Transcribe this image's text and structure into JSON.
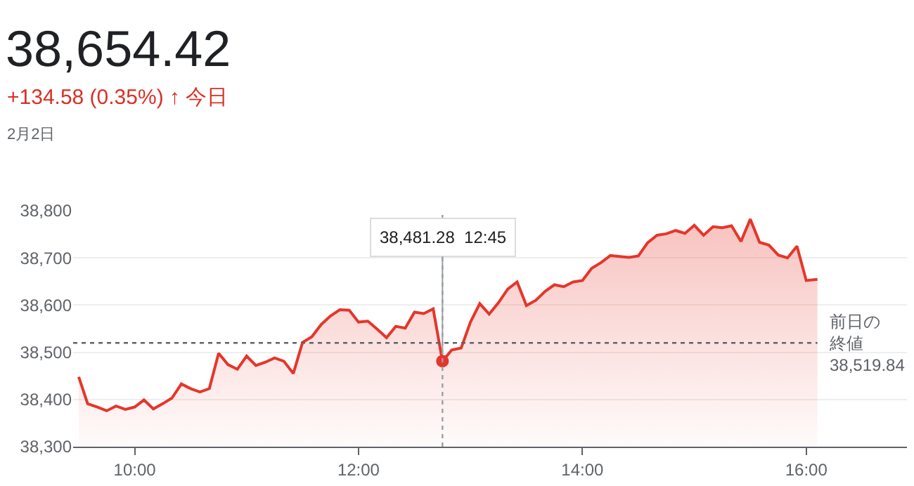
{
  "chart_data": {
    "type": "area",
    "title": "38,654.42",
    "subtitle": "+134.58 (0.35%) ↑ 今日",
    "annotations": [
      "2月2日",
      {
        "text": "38,481.28  12:45",
        "x": 12.75,
        "y": 38481.28
      }
    ],
    "x": [
      9.5,
      9.58,
      9.667,
      9.75,
      9.833,
      9.917,
      10.0,
      10.083,
      10.167,
      10.25,
      10.333,
      10.417,
      10.5,
      10.583,
      10.667,
      10.75,
      10.833,
      10.917,
      11.0,
      11.083,
      11.167,
      11.25,
      11.333,
      11.417,
      11.5,
      11.583,
      11.667,
      11.75,
      11.833,
      11.917,
      12.0,
      12.083,
      12.167,
      12.25,
      12.333,
      12.417,
      12.5,
      12.583,
      12.667,
      12.75,
      12.833,
      12.917,
      13.0,
      13.083,
      13.167,
      13.25,
      13.333,
      13.417,
      13.5,
      13.583,
      13.667,
      13.75,
      13.833,
      13.917,
      14.0,
      14.083,
      14.167,
      14.25,
      14.333,
      14.417,
      14.5,
      14.583,
      14.667,
      14.75,
      14.833,
      14.917,
      15.0,
      15.083,
      15.167,
      15.25,
      15.333,
      15.417,
      15.5,
      15.583,
      15.667,
      15.75,
      15.833,
      15.917,
      16.0,
      16.1
    ],
    "series": [
      {
        "color": "#e5362b",
        "values": [
          38448,
          38391,
          38384,
          38376,
          38386,
          38379,
          38384,
          38399,
          38380,
          38391,
          38403,
          38433,
          38423,
          38416,
          38423,
          38498,
          38474,
          38464,
          38492,
          38472,
          38479,
          38488,
          38481,
          38455,
          38521,
          38533,
          38559,
          38577,
          38590,
          38589,
          38564,
          38566,
          38549,
          38531,
          38555,
          38551,
          38585,
          38582,
          38592,
          38481.28,
          38505,
          38509,
          38564,
          38603,
          38581,
          38605,
          38634,
          38649,
          38599,
          38610,
          38629,
          38643,
          38639,
          38649,
          38652,
          38678,
          38690,
          38705,
          38703,
          38701,
          38704,
          38732,
          38748,
          38751,
          38758,
          38752,
          38769,
          38748,
          38766,
          38764,
          38768,
          38735,
          38782,
          38733,
          38727,
          38706,
          38700,
          38725,
          38652,
          38654.42
        ]
      }
    ],
    "xlim": [
      9.45,
      16.9
    ],
    "ylim": [
      38300,
      38800
    ],
    "xticks": [
      {
        "value": 10,
        "label": "10:00"
      },
      {
        "value": 12,
        "label": "12:00"
      },
      {
        "value": 14,
        "label": "14:00"
      },
      {
        "value": 16,
        "label": "16:00"
      }
    ],
    "yticks": [
      {
        "value": 38300,
        "label": "38,300"
      },
      {
        "value": 38400,
        "label": "38,400"
      },
      {
        "value": 38500,
        "label": "38,500"
      },
      {
        "value": 38600,
        "label": "38,600"
      },
      {
        "value": 38700,
        "label": "38,700"
      },
      {
        "value": 38800,
        "label": "38,800"
      }
    ],
    "ref_lines": [
      {
        "axis": "y",
        "value": 38519.84,
        "label": "前日の終値38,519.84",
        "color": "#5f6368",
        "line_style": "dotted"
      },
      {
        "axis": "x",
        "value": 12.75,
        "color": "#9aa0a6",
        "line_style": "dotted"
      }
    ],
    "grid": "y",
    "marker": "none",
    "line_style": "solid"
  }
}
